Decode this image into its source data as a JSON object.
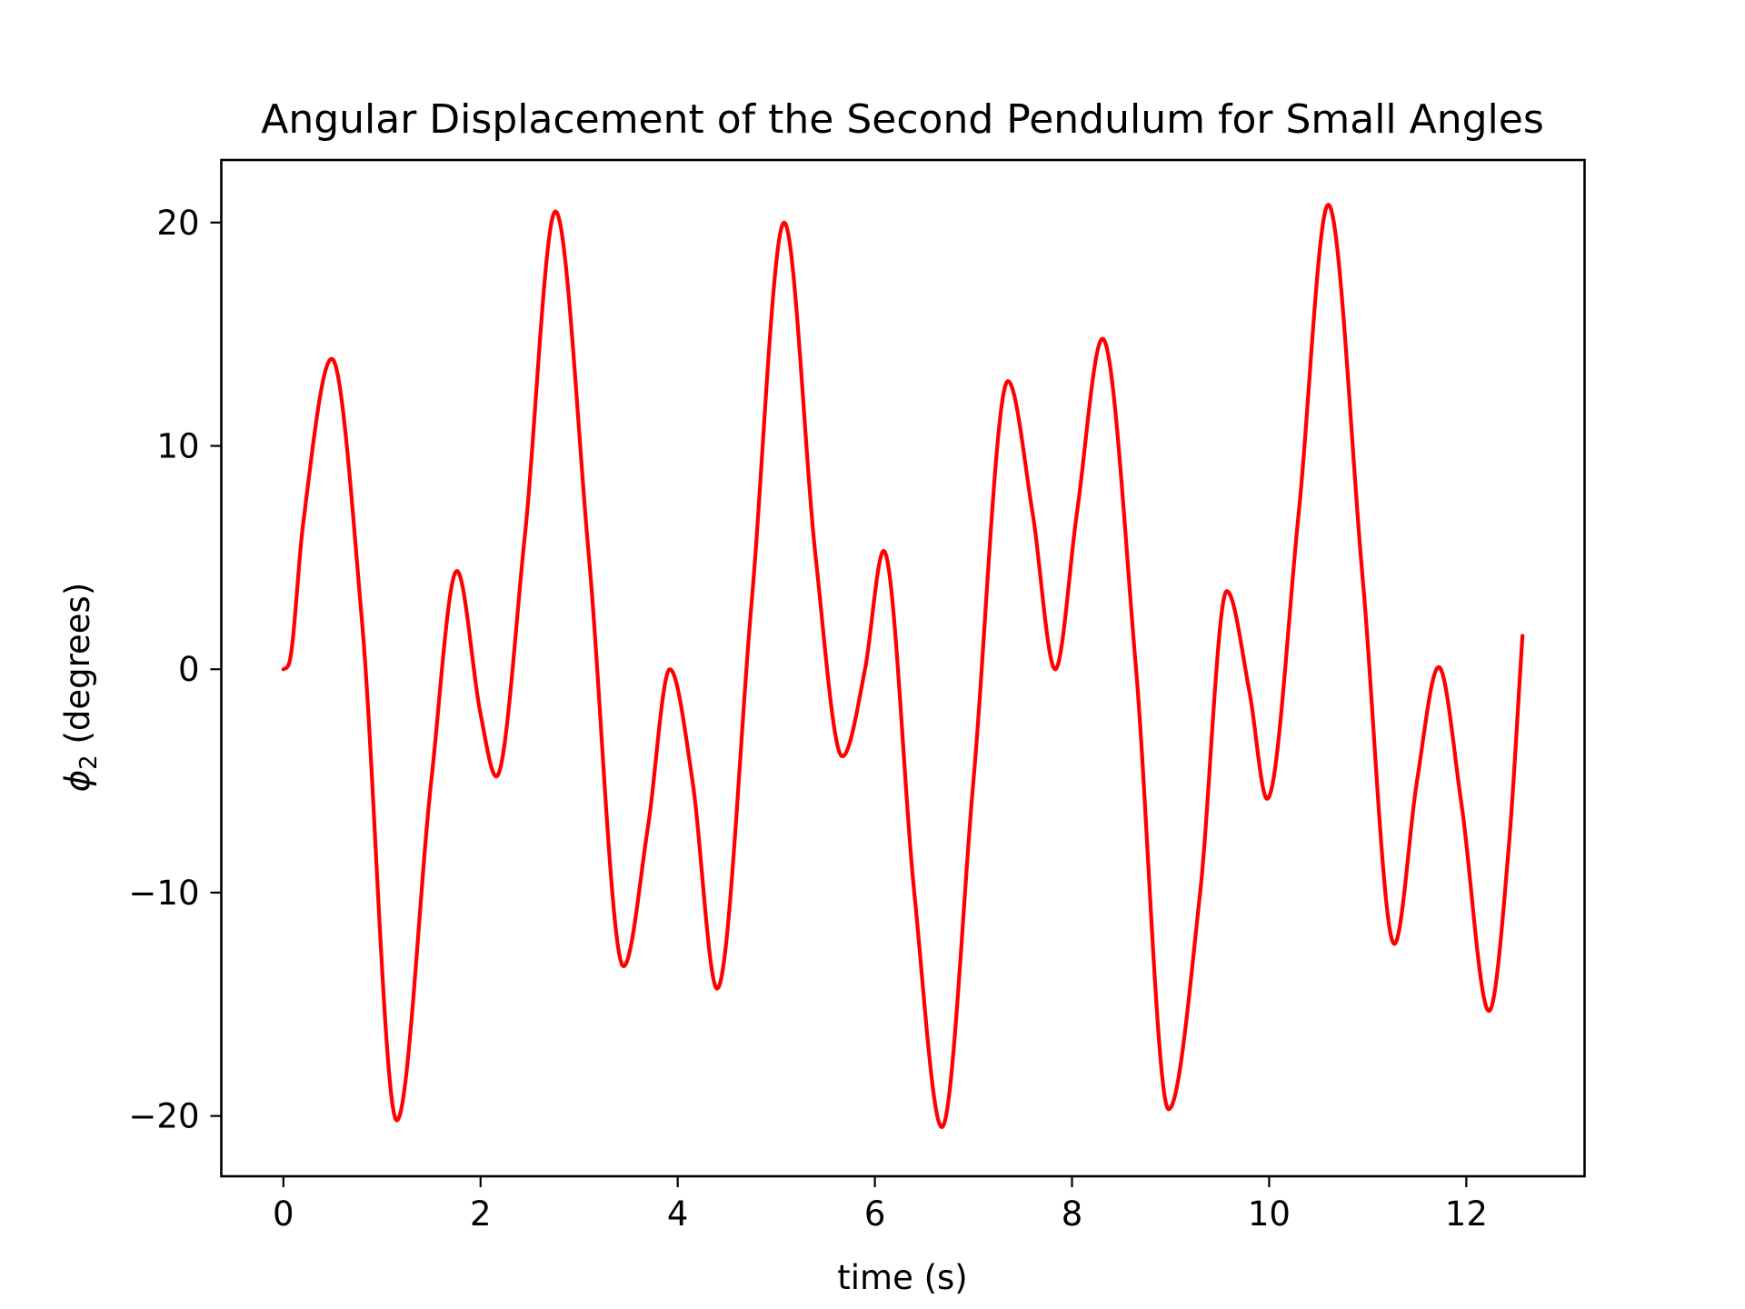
{
  "chart_data": {
    "type": "line",
    "title": "Angular Displacement of the Second Pendulum for Small Angles",
    "xlabel": "time (s)",
    "ylabel_symbol": "ϕ",
    "ylabel_subscript": "2",
    "ylabel_rest": " (degrees)",
    "xlim": [
      -0.63,
      13.2
    ],
    "ylim": [
      -22.7,
      22.8
    ],
    "x_ticks": [
      0,
      2,
      4,
      6,
      8,
      10,
      12
    ],
    "x_tick_labels": [
      "0",
      "2",
      "4",
      "6",
      "8",
      "10",
      "12"
    ],
    "y_ticks": [
      -20,
      -10,
      0,
      10,
      20
    ],
    "y_tick_labels": [
      "−20",
      "−10",
      "0",
      "10",
      "20"
    ],
    "grid": false,
    "legend": false,
    "colors": {
      "line": "#ff0000",
      "axes": "#000000",
      "background": "#ffffff"
    },
    "series": [
      {
        "x": [
          0,
          0.06,
          0.2,
          0.49,
          0.8,
          1.15,
          1.5,
          1.76,
          2.0,
          2.16,
          2.45,
          2.76,
          3.1,
          3.45,
          3.7,
          3.92,
          4.15,
          4.4,
          4.75,
          5.08,
          5.4,
          5.67,
          5.9,
          6.09,
          6.4,
          6.68,
          7.0,
          7.35,
          7.6,
          7.83,
          8.05,
          8.31,
          8.65,
          8.98,
          9.3,
          9.57,
          9.8,
          9.98,
          10.3,
          10.6,
          10.95,
          11.27,
          11.5,
          11.72,
          11.95,
          12.23,
          12.43,
          12.57
        ],
        "y": [
          0,
          0.3,
          6.5,
          13.9,
          2.0,
          -20.2,
          -5.0,
          4.4,
          -2.0,
          -4.8,
          6.0,
          20.5,
          5.0,
          -13.3,
          -7.0,
          0,
          -5.0,
          -14.3,
          3.0,
          20.0,
          5.0,
          -3.9,
          0.0,
          5.3,
          -10.0,
          -20.5,
          -5.0,
          12.9,
          7.0,
          0,
          7.0,
          14.8,
          0.0,
          -19.7,
          -10.0,
          3.5,
          -1.0,
          -5.8,
          7.0,
          20.8,
          4.0,
          -12.3,
          -5.0,
          0.1,
          -6.0,
          -15.3,
          -8.0,
          1.5
        ]
      }
    ]
  }
}
